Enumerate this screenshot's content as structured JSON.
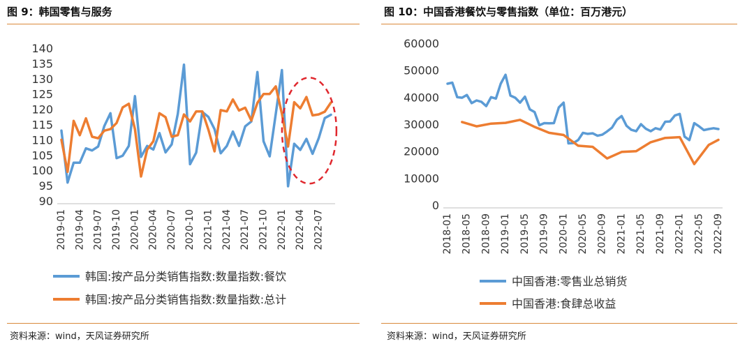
{
  "left_panel": {
    "title": "图 9：韩国零售与服务",
    "source": "资料来源：wind，天风证券研究所"
  },
  "right_panel": {
    "title": "图 10：中国香港餐饮与零售指数（单位：百万港元）",
    "source": "资料来源：wind，天风证券研究所"
  },
  "colors": {
    "blue": "#5b9bd5",
    "orange": "#ed7d31",
    "accent_rule": "#d9893a",
    "annotation": "#e0282e"
  },
  "chart_data": [
    {
      "type": "line",
      "title": "",
      "ylim": [
        90,
        140
      ],
      "yticks": [
        90,
        95,
        100,
        105,
        110,
        115,
        120,
        125,
        130,
        135,
        140
      ],
      "xtick_labels": [
        "2019-01",
        "2019-04",
        "2019-07",
        "2019-10",
        "2020-01",
        "2020-04",
        "2020-07",
        "2020-10",
        "2021-01",
        "2021-04",
        "2021-07",
        "2021-10",
        "2022-01",
        "2022-04",
        "2022-07"
      ],
      "x": [
        "2019-01",
        "2019-02",
        "2019-03",
        "2019-04",
        "2019-05",
        "2019-06",
        "2019-07",
        "2019-08",
        "2019-09",
        "2019-10",
        "2019-11",
        "2019-12",
        "2020-01",
        "2020-02",
        "2020-03",
        "2020-04",
        "2020-05",
        "2020-06",
        "2020-07",
        "2020-08",
        "2020-09",
        "2020-10",
        "2020-11",
        "2020-12",
        "2021-01",
        "2021-02",
        "2021-03",
        "2021-04",
        "2021-05",
        "2021-06",
        "2021-07",
        "2021-08",
        "2021-09",
        "2021-10",
        "2021-11",
        "2021-12",
        "2022-01",
        "2022-02",
        "2022-03",
        "2022-04",
        "2022-05",
        "2022-06",
        "2022-07",
        "2022-08",
        "2022-09"
      ],
      "series": [
        {
          "name": "韩国:按产品分类销售指数:数量指数:餐饮",
          "color": "#5b9bd5",
          "values": [
            113,
            96,
            102.5,
            102.5,
            107.2,
            106.5,
            107.8,
            114.5,
            118.7,
            104,
            104.8,
            108,
            124.3,
            104.4,
            108,
            106.8,
            112.2,
            105.9,
            108.5,
            118.5,
            134.6,
            102,
            105.8,
            119.1,
            117.5,
            113.5,
            105.6,
            108,
            112.7,
            108,
            114.4,
            116,
            132.2,
            109.5,
            104.6,
            118.5,
            132.8,
            94.8,
            108.7,
            106.7,
            110.3,
            105.4,
            110.5,
            117.1,
            118.2
          ]
        },
        {
          "name": "韩国:按产品分类销售指数:数量指数:总计",
          "color": "#ed7d31",
          "values": [
            110,
            99.5,
            116.2,
            111.5,
            117,
            111,
            110.5,
            113,
            113.5,
            115.5,
            120.6,
            121.8,
            113.5,
            98,
            106.8,
            109.5,
            118.7,
            117.4,
            111,
            111.5,
            118.3,
            116,
            119.3,
            119.3,
            113.3,
            106.2,
            119.7,
            119.3,
            123.2,
            119.6,
            120.5,
            116.3,
            122.1,
            125,
            125,
            127.5,
            118.5,
            107.8,
            122.3,
            120.3,
            124,
            118,
            118.3,
            119.2,
            122.2
          ]
        }
      ],
      "annotation": "ellipse-2022"
    },
    {
      "type": "line",
      "title": "",
      "ylim": [
        0,
        60000
      ],
      "yticks": [
        0,
        10000,
        20000,
        30000,
        40000,
        50000,
        60000
      ],
      "xtick_labels": [
        "2018-01",
        "2018-05",
        "2018-09",
        "2019-01",
        "2019-05",
        "2019-09",
        "2020-01",
        "2020-05",
        "2020-09",
        "2021-01",
        "2021-05",
        "2021-09",
        "2022-01",
        "2022-05",
        "2022-09"
      ],
      "x": [
        "2018-01",
        "2018-02",
        "2018-03",
        "2018-04",
        "2018-05",
        "2018-06",
        "2018-07",
        "2018-08",
        "2018-09",
        "2018-10",
        "2018-11",
        "2018-12",
        "2019-01",
        "2019-02",
        "2019-03",
        "2019-04",
        "2019-05",
        "2019-06",
        "2019-07",
        "2019-08",
        "2019-09",
        "2019-10",
        "2019-11",
        "2019-12",
        "2020-01",
        "2020-02",
        "2020-03",
        "2020-04",
        "2020-05",
        "2020-06",
        "2020-07",
        "2020-08",
        "2020-09",
        "2020-10",
        "2020-11",
        "2020-12",
        "2021-01",
        "2021-02",
        "2021-03",
        "2021-04",
        "2021-05",
        "2021-06",
        "2021-07",
        "2021-08",
        "2021-09",
        "2021-10",
        "2021-11",
        "2021-12",
        "2022-01",
        "2022-02",
        "2022-03",
        "2022-04",
        "2022-05",
        "2022-06",
        "2022-07",
        "2022-08",
        "2022-09"
      ],
      "series": [
        {
          "name": "中国香港:零售业总销货",
          "color": "#5b9bd5",
          "values": [
            45000,
            45400,
            40000,
            39800,
            40800,
            37800,
            38800,
            38300,
            36700,
            40000,
            39500,
            45000,
            48300,
            40600,
            39800,
            38000,
            40200,
            35500,
            34500,
            29600,
            30400,
            30300,
            30400,
            36200,
            38000,
            22900,
            23000,
            24100,
            26800,
            26400,
            26600,
            25700,
            26100,
            27300,
            28700,
            31600,
            33000,
            29400,
            27900,
            27400,
            30000,
            28300,
            27400,
            28500,
            28000,
            30900,
            31000,
            33200,
            33800,
            25400,
            24100,
            30400,
            29200,
            27800,
            28200,
            28500,
            28200
          ]
        },
        {
          "name": "中国香港:食肆总收益",
          "color": "#ed7d31",
          "points": [
            [
              "2018-04",
              30800
            ],
            [
              "2018-07",
              29200
            ],
            [
              "2018-10",
              30200
            ],
            [
              "2019-01",
              30500
            ],
            [
              "2019-04",
              31600
            ],
            [
              "2019-07",
              29000
            ],
            [
              "2019-10",
              26800
            ],
            [
              "2020-01",
              26000
            ],
            [
              "2020-04",
              22000
            ],
            [
              "2020-07",
              21600
            ],
            [
              "2020-10",
              17300
            ],
            [
              "2021-01",
              19700
            ],
            [
              "2021-04",
              20000
            ],
            [
              "2021-07",
              23300
            ],
            [
              "2021-10",
              24900
            ],
            [
              "2022-01",
              25200
            ],
            [
              "2022-04",
              15200
            ],
            [
              "2022-07",
              22300
            ],
            [
              "2022-09",
              24200
            ]
          ]
        }
      ]
    }
  ]
}
